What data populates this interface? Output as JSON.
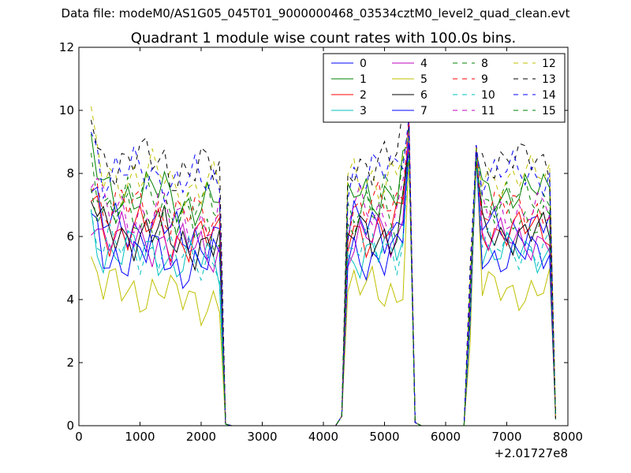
{
  "header": {
    "file_label": "Data file: modeM0/AS1G05_045T01_9000000468_03534cztM0_level2_quad_clean.evt"
  },
  "chart_data": {
    "type": "line",
    "title": "Quadrant 1 module wise count rates with 100.0s bins.",
    "xlabel": "",
    "ylabel": "",
    "x_offset_label": "+2.01727e8",
    "xlim": [
      0,
      8000
    ],
    "ylim": [
      0,
      12
    ],
    "x_ticks": [
      0,
      1000,
      2000,
      3000,
      4000,
      5000,
      6000,
      7000,
      8000
    ],
    "y_ticks": [
      0,
      2,
      4,
      6,
      8,
      10,
      12
    ],
    "grid": false,
    "legend_location": "upper right",
    "legend_columns": 4,
    "segments": [
      {
        "x_start": 200,
        "step": 100,
        "count": 22
      },
      {
        "x_start": 2400,
        "step": 100,
        "count": 19
      },
      {
        "x_start": 4300,
        "step": 100,
        "count": 11
      },
      {
        "x_start": 5400,
        "step": 100,
        "count": 10
      },
      {
        "x_start": 6400,
        "step": 100,
        "count": 15
      }
    ],
    "series": [
      {
        "name": "0",
        "color": "#0000ff",
        "dash": "solid",
        "base": 6.3
      },
      {
        "name": "1",
        "color": "#008000",
        "dash": "solid",
        "base": 7.4
      },
      {
        "name": "2",
        "color": "#ff0000",
        "dash": "solid",
        "base": 6.2
      },
      {
        "name": "3",
        "color": "#00bfbf",
        "dash": "solid",
        "base": 5.5
      },
      {
        "name": "4",
        "color": "#bf00bf",
        "dash": "solid",
        "base": 5.9
      },
      {
        "name": "5",
        "color": "#bfbf00",
        "dash": "solid",
        "base": 4.3
      },
      {
        "name": "6",
        "color": "#000000",
        "dash": "solid",
        "base": 6.1
      },
      {
        "name": "7",
        "color": "#0000ff",
        "dash": "solid",
        "base": 5.4
      },
      {
        "name": "8",
        "color": "#008000",
        "dash": "dashed",
        "base": 7.2
      },
      {
        "name": "9",
        "color": "#ff0000",
        "dash": "dashed",
        "base": 6.9
      },
      {
        "name": "10",
        "color": "#00bfbf",
        "dash": "dashed",
        "base": 5.6
      },
      {
        "name": "11",
        "color": "#bf00bf",
        "dash": "dashed",
        "base": 6.8
      },
      {
        "name": "12",
        "color": "#bfbf00",
        "dash": "dashed",
        "base": 7.9
      },
      {
        "name": "13",
        "color": "#000000",
        "dash": "dashed",
        "base": 8.4
      },
      {
        "name": "14",
        "color": "#0000ff",
        "dash": "dashed",
        "base": 8.0
      },
      {
        "name": "15",
        "color": "#008000",
        "dash": "dashed",
        "base": 6.6
      }
    ]
  }
}
